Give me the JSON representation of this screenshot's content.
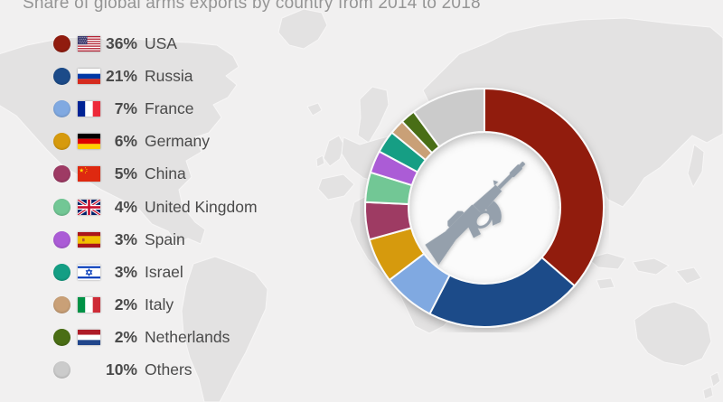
{
  "title": "Share of global arms exports by country from 2014 to 2018",
  "colors": {
    "background": "#F1F0F0",
    "map_land": "#E3E2E2",
    "map_border": "#F7F6F6",
    "title_text": "#959595",
    "legend_text": "#4A4A4A",
    "segment_separator": "#FAFAFA",
    "center_circle": "#FBFBFB",
    "center_icon": "#95A0AC"
  },
  "chart_data": {
    "type": "pie",
    "variant": "donut",
    "title": "Share of global arms exports by country from 2014 to 2018",
    "unit": "%",
    "start_angle_deg": 0,
    "direction": "clockwise",
    "inner_radius_ratio": 0.64,
    "legend_position": "left",
    "center_icon": "rifle-icon",
    "categories": [
      "USA",
      "Russia",
      "France",
      "Germany",
      "China",
      "United Kingdom",
      "Spain",
      "Israel",
      "Italy",
      "Netherlands",
      "Others"
    ],
    "values": [
      36,
      21,
      7,
      6,
      5,
      4,
      3,
      3,
      2,
      2,
      10
    ],
    "labels": [
      "36%",
      "21%",
      "7%",
      "6%",
      "5%",
      "4%",
      "3%",
      "3%",
      "2%",
      "2%",
      "10%"
    ],
    "colors": [
      "#911C0F",
      "#1C4B89",
      "#80A9E1",
      "#D69A0D",
      "#9E3A64",
      "#72C795",
      "#AB5CD6",
      "#149E84",
      "#C9A077",
      "#4A6E15",
      "#CBCBCB"
    ],
    "flags": [
      "flag-usa-icon",
      "flag-russia-icon",
      "flag-france-icon",
      "flag-germany-icon",
      "flag-china-icon",
      "flag-uk-icon",
      "flag-spain-icon",
      "flag-israel-icon",
      "flag-italy-icon",
      "flag-netherlands-icon",
      null
    ]
  }
}
